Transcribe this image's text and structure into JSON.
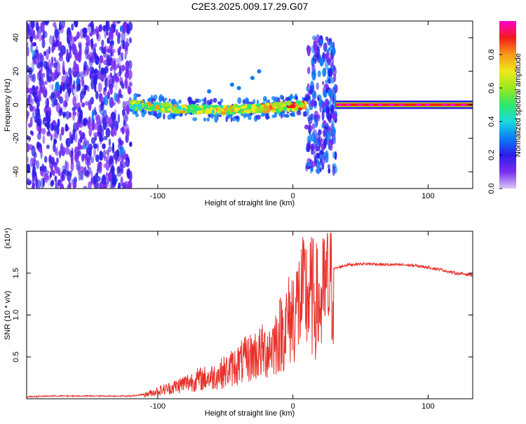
{
  "title": "C2E3.2025.009.17.29.G07",
  "colors": {
    "background": "#ffffff",
    "snr_line": "#e8302a",
    "colormap": [
      "#d9c8f5",
      "#7a2cf0",
      "#2b1ee8",
      "#0a7cf5",
      "#19d9e0",
      "#2ee86a",
      "#9be81f",
      "#f0e81c",
      "#f59a1a",
      "#f21c1c",
      "#ff00cc"
    ]
  },
  "chart_data": [
    {
      "type": "heatmap",
      "xlabel": "Height of straight line (km)",
      "ylabel": "Frequency (Hz)",
      "xlim": [
        -197,
        133
      ],
      "ylim": [
        -50,
        50
      ],
      "xticks": [
        -100,
        0,
        100
      ],
      "yticks": [
        -40,
        -20,
        0,
        20,
        40
      ],
      "xtick_labels": [
        "-100",
        "0",
        "100"
      ],
      "ytick_labels": [
        "-40",
        "-20",
        "0",
        "20",
        "40"
      ],
      "colorbar": {
        "label": "Normalized spectral amplitude",
        "range": [
          0,
          1
        ],
        "ticks": [
          0.0,
          0.2,
          0.4,
          0.6,
          0.8
        ],
        "tick_labels": [
          "0.0",
          "0.2",
          "0.4",
          "0.6",
          "0.8"
        ]
      },
      "features": [
        {
          "name": "noise",
          "x_range": [
            -197,
            -120
          ],
          "freq_range": [
            -50,
            50
          ],
          "amplitude": 0.15
        },
        {
          "name": "signal_trace",
          "x_range": [
            -120,
            10
          ],
          "freq_start": 0,
          "freq_end": -3,
          "amplitude": 0.5
        },
        {
          "name": "burst",
          "x_range": [
            10,
            32
          ],
          "freq_range": [
            -40,
            40
          ],
          "amplitude": 0.2
        },
        {
          "name": "steady_line",
          "x_range": [
            32,
            133
          ],
          "freq": 0,
          "amplitude": 0.85
        }
      ]
    },
    {
      "type": "line",
      "xlabel": "Height of straight line (km)",
      "ylabel": "SNR (10 * v/v)",
      "multiplier": "(x10⁴)",
      "xlim": [
        -197,
        133
      ],
      "ylim": [
        0,
        2.0
      ],
      "xticks": [
        -100,
        0,
        100
      ],
      "yticks": [
        0.5,
        1.0,
        1.5
      ],
      "xtick_labels": [
        "-100",
        "0",
        "100"
      ],
      "ytick_labels": [
        "0.5",
        "1.0",
        "1.5"
      ],
      "series": [
        {
          "x": [
            -197,
            -180,
            -160,
            -140,
            -120,
            -110,
            -100,
            -90,
            -80,
            -70,
            -60,
            -50,
            -40,
            -30,
            -20,
            -15,
            -10,
            -5,
            0,
            5,
            10,
            15,
            20,
            25,
            30,
            40,
            50,
            60,
            70,
            80,
            90,
            100,
            110,
            120,
            133
          ],
          "values": [
            0.02,
            0.03,
            0.03,
            0.03,
            0.03,
            0.05,
            0.1,
            0.14,
            0.2,
            0.25,
            0.28,
            0.35,
            0.45,
            0.55,
            0.62,
            0.7,
            0.82,
            0.95,
            1.1,
            1.25,
            1.35,
            1.3,
            1.2,
            1.45,
            1.55,
            1.6,
            1.61,
            1.61,
            1.6,
            1.6,
            1.59,
            1.57,
            1.54,
            1.5,
            1.48
          ]
        }
      ]
    }
  ]
}
